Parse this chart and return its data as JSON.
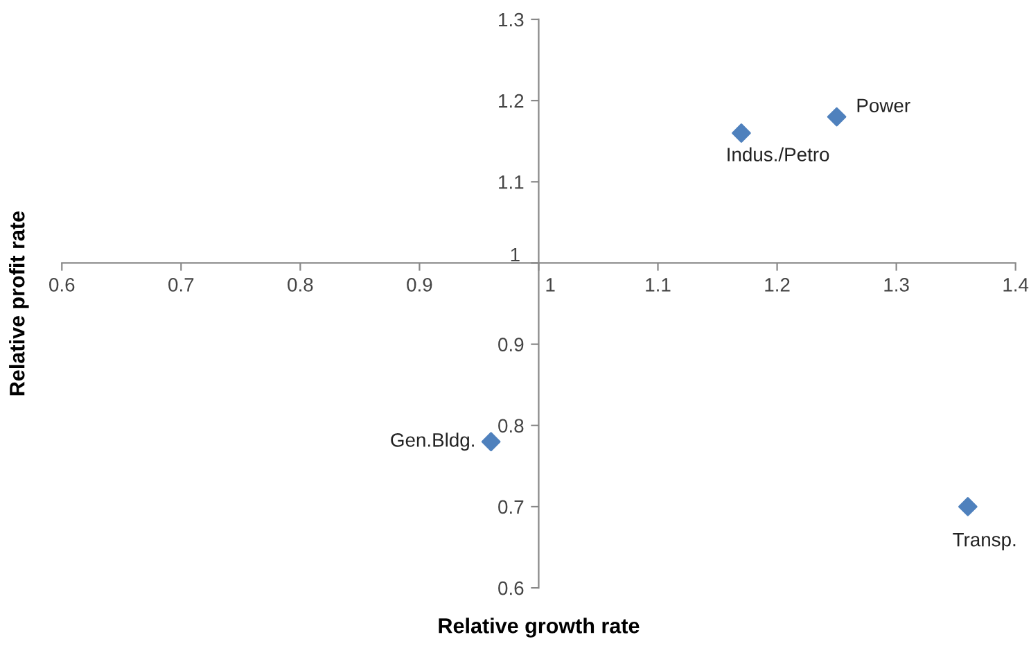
{
  "chart_data": {
    "type": "scatter",
    "xlabel": "Relative growth rate",
    "ylabel": "Relative profit rate",
    "x": [
      1.25,
      1.17,
      0.96,
      1.36
    ],
    "series": [
      {
        "color": "#4f81bd",
        "values": [
          1.18,
          1.16,
          0.78,
          0.7
        ]
      }
    ],
    "marker": "diamond",
    "xlim": [
      0.6,
      1.4
    ],
    "xticks": [
      0.6,
      0.7,
      0.8,
      0.9,
      1,
      1.1,
      1.2,
      1.3,
      1.4
    ],
    "ylim": [
      0.6,
      1.3
    ],
    "yticks": [
      0.6,
      0.7,
      0.8,
      0.9,
      1,
      1.1,
      1.2,
      1.3
    ],
    "annotations": [
      {
        "text": "Power",
        "x": 1.25,
        "y": 1.18
      },
      {
        "text": "Indus./Petro",
        "x": 1.17,
        "y": 1.16
      },
      {
        "text": "Gen.Bldg.",
        "x": 0.96,
        "y": 0.78
      },
      {
        "text": "Transp.",
        "x": 1.36,
        "y": 0.7
      }
    ]
  }
}
